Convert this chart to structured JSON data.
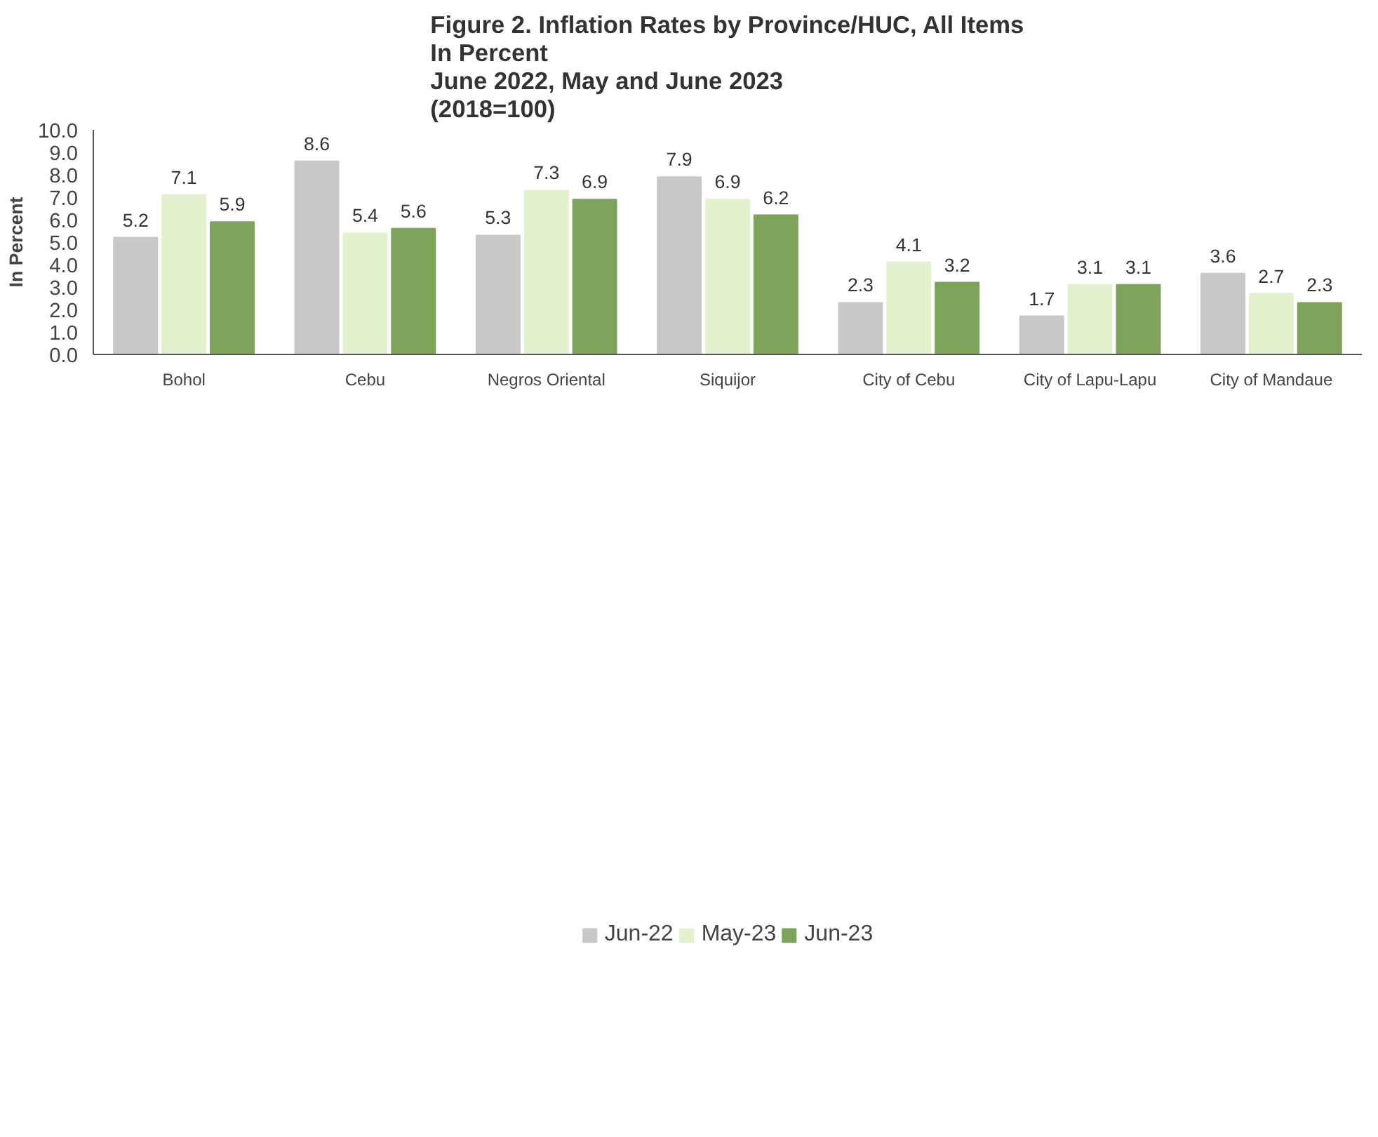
{
  "chart_data": {
    "type": "bar",
    "title": "Figure 2. Inflation Rates by Province/HUC, All Items",
    "subtitle": "In Percent\nJune 2022, May and June 2023\n(2018=100)",
    "ylabel": "In Percent",
    "categories": [
      "Bohol",
      "Cebu",
      "Negros Oriental",
      "Siquijor",
      "City of Cebu",
      "City of Lapu-Lapu",
      "City of Mandaue"
    ],
    "series": [
      {
        "name": "Jun-22",
        "color": "#c8c8c8",
        "values": [
          5.2,
          8.6,
          5.3,
          7.9,
          2.3,
          1.7,
          3.6
        ]
      },
      {
        "name": "May-23",
        "color": "#e4f1cf",
        "values": [
          7.1,
          5.4,
          7.3,
          6.9,
          4.1,
          3.1,
          2.7
        ]
      },
      {
        "name": "Jun-23",
        "color": "#7ea35a",
        "values": [
          5.9,
          5.6,
          6.9,
          6.2,
          3.2,
          3.1,
          2.3
        ]
      }
    ],
    "ylim": [
      0,
      10
    ],
    "yticks": [
      {
        "value": 0,
        "label": "0.0"
      },
      {
        "value": 1,
        "label": "1.0"
      },
      {
        "value": 2,
        "label": "2.0"
      },
      {
        "value": 3,
        "label": "3.0"
      },
      {
        "value": 4,
        "label": "4.0"
      },
      {
        "value": 5,
        "label": "5.0"
      },
      {
        "value": 6,
        "label": "6.0"
      },
      {
        "value": 7,
        "label": "7.0"
      },
      {
        "value": 8,
        "label": "8.0"
      },
      {
        "value": 9,
        "label": "9.0"
      },
      {
        "value": 10,
        "label": "10.0"
      }
    ],
    "data_labels": true,
    "grid": false,
    "legend": "bottom"
  }
}
